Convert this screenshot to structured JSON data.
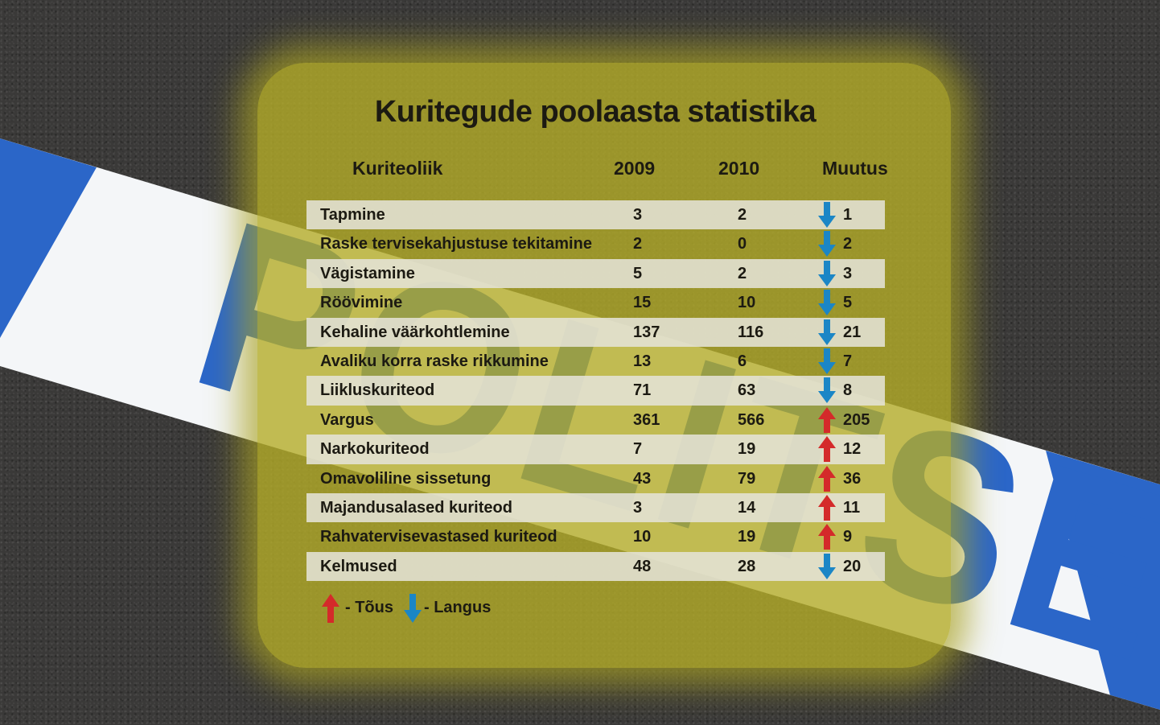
{
  "chart_data": {
    "type": "table",
    "title": "Kuritegude poolaasta statistika",
    "columns": [
      "Kuriteoliik",
      "2009",
      "2010",
      "Muutus"
    ],
    "rows": [
      {
        "name": "Tapmine",
        "v2009": "3",
        "v2010": "2",
        "change": "1",
        "direction": "down"
      },
      {
        "name": "Raske tervisekahjustuse tekitamine",
        "v2009": "2",
        "v2010": "0",
        "change": "2",
        "direction": "down"
      },
      {
        "name": "Vägistamine",
        "v2009": "5",
        "v2010": "2",
        "change": "3",
        "direction": "down"
      },
      {
        "name": "Röövimine",
        "v2009": "15",
        "v2010": "10",
        "change": "5",
        "direction": "down"
      },
      {
        "name": "Kehaline väärkohtlemine",
        "v2009": "137",
        "v2010": "116",
        "change": "21",
        "direction": "down"
      },
      {
        "name": "Avaliku korra raske rikkumine",
        "v2009": "13",
        "v2010": "6",
        "change": "7",
        "direction": "down"
      },
      {
        "name": "Liikluskuriteod",
        "v2009": "71",
        "v2010": "63",
        "change": "8",
        "direction": "down"
      },
      {
        "name": "Vargus",
        "v2009": "361",
        "v2010": "566",
        "change": "205",
        "direction": "up"
      },
      {
        "name": "Narkokuriteod",
        "v2009": "7",
        "v2010": "19",
        "change": "12",
        "direction": "up"
      },
      {
        "name": "Omavoliline sissetung",
        "v2009": "43",
        "v2010": "79",
        "change": "36",
        "direction": "up"
      },
      {
        "name": "Majandusalased kuriteod",
        "v2009": "3",
        "v2010": "14",
        "change": "11",
        "direction": "up"
      },
      {
        "name": "Rahvatervisevastased kuriteod",
        "v2009": "10",
        "v2010": "19",
        "change": "9",
        "direction": "up"
      },
      {
        "name": "Kelmused",
        "v2009": "48",
        "v2010": "28",
        "change": "20",
        "direction": "down"
      }
    ],
    "legend": {
      "up": "- Tõus",
      "down": "- Langus"
    }
  },
  "tape_text": "POLITSEI",
  "colors": {
    "up_arrow": "#d42a2a",
    "down_arrow": "#1b86c6",
    "tape_blue": "#2b66c8",
    "panel": "#b4ac28",
    "text": "#1c1a12"
  }
}
